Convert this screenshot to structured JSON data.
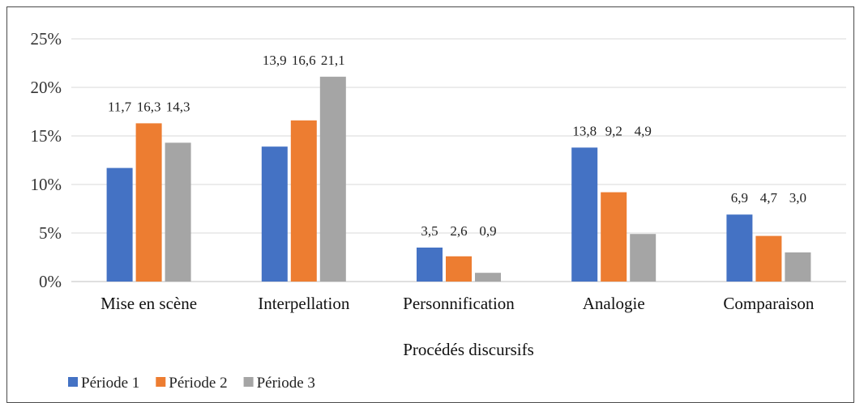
{
  "chart_data": {
    "type": "bar",
    "categories": [
      "Mise en scène",
      "Interpellation",
      "Personnification",
      "Analogie",
      "Comparaison"
    ],
    "series": [
      {
        "name": "Période 1",
        "color": "#4472c4",
        "values": [
          11.7,
          13.9,
          3.5,
          13.8,
          6.9
        ],
        "labels": [
          "11,7",
          "13,9",
          "3,5",
          "13,8",
          "6,9"
        ]
      },
      {
        "name": "Période 2",
        "color": "#ed7d31",
        "values": [
          16.3,
          16.6,
          2.6,
          9.2,
          4.7
        ],
        "labels": [
          "16,3",
          "16,6",
          "2,6",
          "9,2",
          "4,7"
        ]
      },
      {
        "name": "Période 3",
        "color": "#a5a5a5",
        "values": [
          14.3,
          21.1,
          0.9,
          4.9,
          3.0
        ],
        "labels": [
          "14,3",
          "21,1",
          "0,9",
          "4,9",
          "3,0"
        ]
      }
    ],
    "y_ticks": [
      "0%",
      "5%",
      "10%",
      "15%",
      "20%",
      "25%"
    ],
    "ylim": [
      0,
      25
    ],
    "xlabel": "Procédés discursifs",
    "ylabel": "",
    "grid": true,
    "legend_position": "bottom-left"
  }
}
